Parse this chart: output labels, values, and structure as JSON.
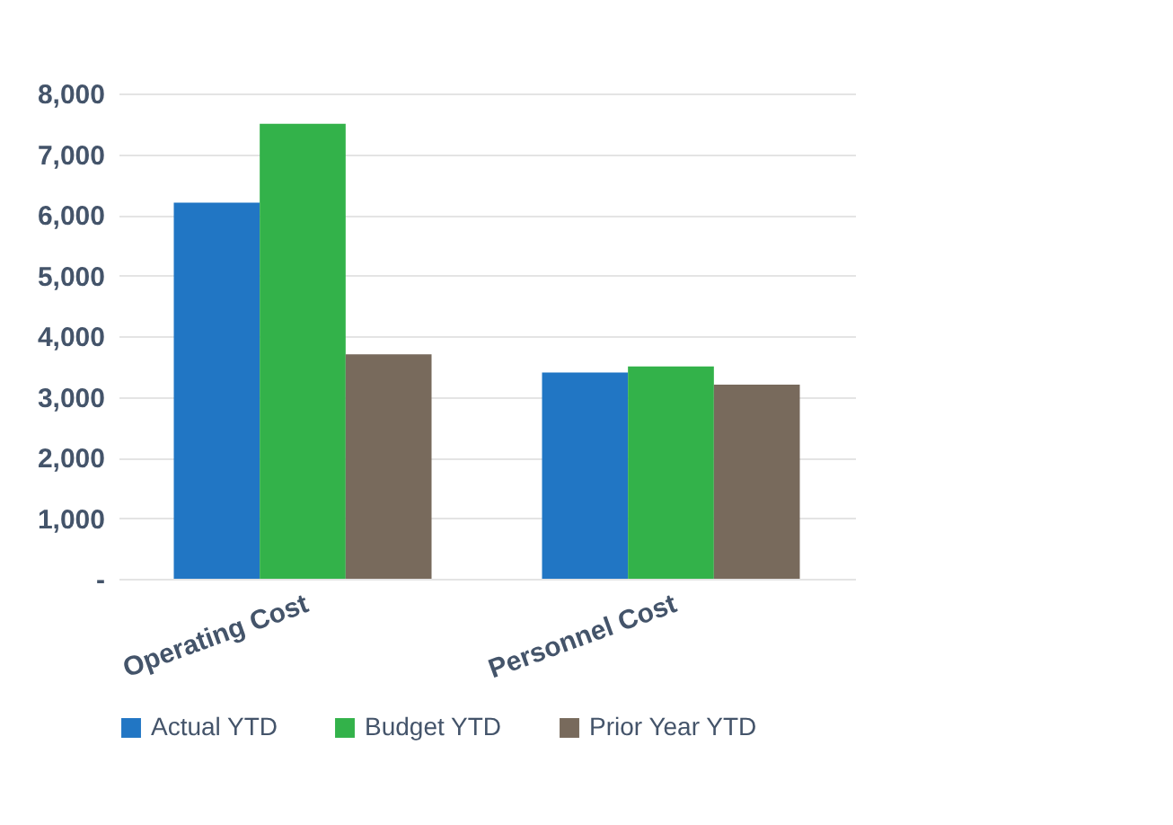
{
  "chart_data": {
    "type": "bar",
    "categories": [
      "Operating Cost",
      "Personnel Cost"
    ],
    "series": [
      {
        "name": "Actual YTD",
        "color": "#2176c4",
        "values": [
          6200,
          3400
        ]
      },
      {
        "name": "Budget YTD",
        "color": "#33b24a",
        "values": [
          7500,
          3500
        ]
      },
      {
        "name": "Prior Year YTD",
        "color": "#786a5c",
        "values": [
          3700,
          3200
        ]
      }
    ],
    "ylim": [
      0,
      8000
    ],
    "yticks": [
      {
        "value": 0,
        "label": "-"
      },
      {
        "value": 1000,
        "label": "1,000"
      },
      {
        "value": 2000,
        "label": "2,000"
      },
      {
        "value": 3000,
        "label": "3,000"
      },
      {
        "value": 4000,
        "label": "4,000"
      },
      {
        "value": 5000,
        "label": "5,000"
      },
      {
        "value": 6000,
        "label": "6,000"
      },
      {
        "value": 7000,
        "label": "7,000"
      },
      {
        "value": 8000,
        "label": "8,000"
      }
    ],
    "grid": "y",
    "legend": "bottom"
  }
}
